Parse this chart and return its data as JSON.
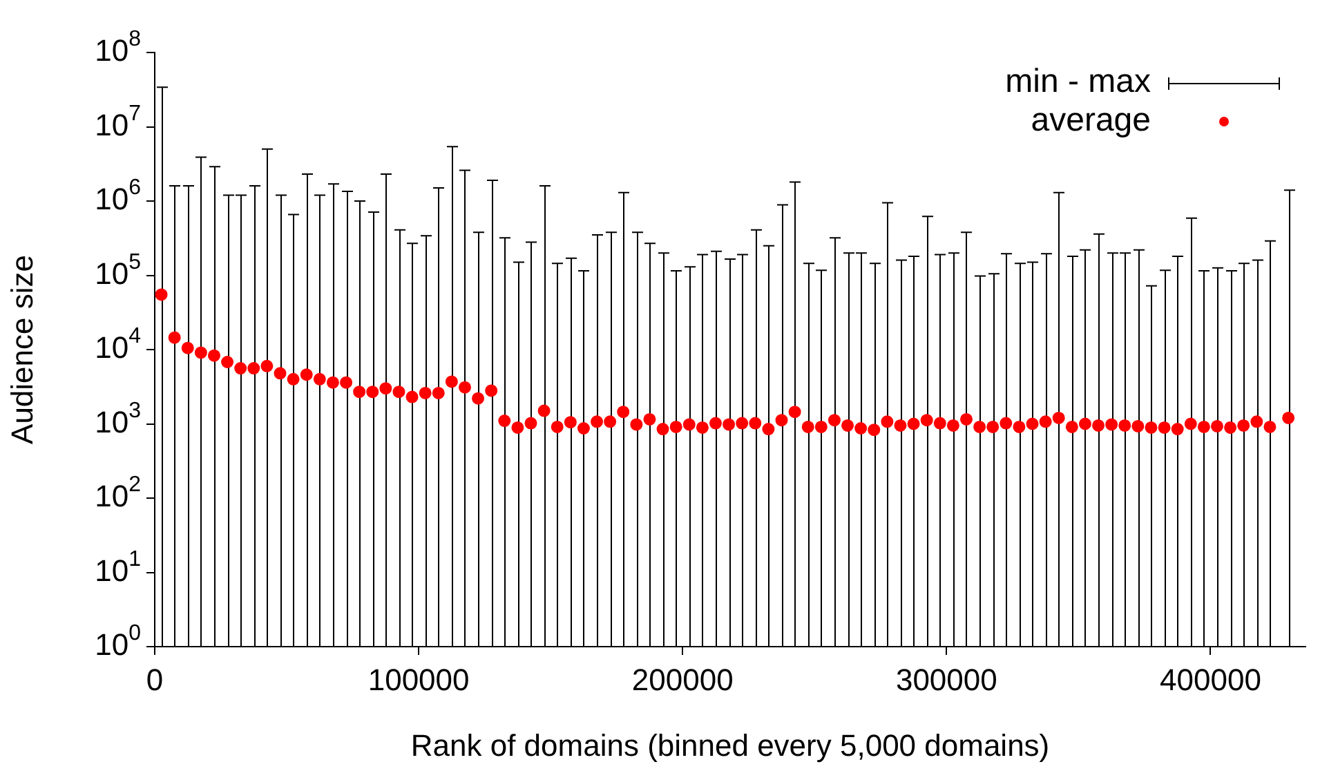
{
  "chart_data": {
    "type": "scatter",
    "xlabel": "Rank of domains (binned every 5,000 domains)",
    "ylabel": "Audience size",
    "log": "y",
    "legend": "top right",
    "marker": "circle",
    "annotations": [
      "min - max"
    ],
    "xlim": [
      0,
      436000
    ],
    "xticks": [
      0,
      100000,
      200000,
      300000,
      400000
    ],
    "ylim": [
      1,
      100000000
    ],
    "yticks": [
      {
        "value": 1,
        "label": "10$^{0}$"
      },
      {
        "value": 10,
        "label": "10$^{1}$"
      },
      {
        "value": 100,
        "label": "10$^{2}$"
      },
      {
        "value": 1000,
        "label": "10$^{3}$"
      },
      {
        "value": 10000,
        "label": "10$^{4}$"
      },
      {
        "value": 100000,
        "label": "10$^{5}$"
      },
      {
        "value": 1000000,
        "label": "10$^{6}$"
      },
      {
        "value": 10000000,
        "label": "10$^{7}$"
      },
      {
        "value": 100000000,
        "label": "10$^{8}$"
      }
    ],
    "x": [
      2500,
      7500,
      12500,
      17500,
      22500,
      27500,
      32500,
      37500,
      42500,
      47500,
      52500,
      57500,
      62500,
      67500,
      72500,
      77500,
      82500,
      87500,
      92500,
      97500,
      102500,
      107500,
      112500,
      117500,
      122500,
      127500,
      132500,
      137500,
      142500,
      147500,
      152500,
      157500,
      162500,
      167500,
      172500,
      177500,
      182500,
      187500,
      192500,
      197500,
      202500,
      207500,
      212500,
      217500,
      222500,
      227500,
      232500,
      237500,
      242500,
      247500,
      252500,
      257500,
      262500,
      267500,
      272500,
      277500,
      282500,
      287500,
      292500,
      297500,
      302500,
      307500,
      312500,
      317500,
      322500,
      327500,
      332500,
      337500,
      342500,
      347500,
      352500,
      357500,
      362500,
      367500,
      372500,
      377500,
      382500,
      387500,
      392500,
      397500,
      402500,
      407500,
      412500,
      417500,
      422500,
      429500
    ],
    "series": [
      {
        "name": "average",
        "color": "#ff0000",
        "values": [
          55000,
          14500,
          10500,
          9100,
          8300,
          6800,
          5600,
          5600,
          6000,
          4800,
          4000,
          4600,
          4000,
          3600,
          3600,
          2700,
          2700,
          3000,
          2700,
          2300,
          2600,
          2600,
          3700,
          3100,
          2200,
          2800,
          1100,
          890,
          1020,
          1500,
          910,
          1050,
          870,
          1070,
          1070,
          1450,
          980,
          1150,
          850,
          910,
          980,
          890,
          1020,
          980,
          1020,
          1020,
          850,
          1120,
          1450,
          910,
          910,
          1120,
          950,
          870,
          830,
          1070,
          950,
          1000,
          1120,
          1020,
          950,
          1150,
          910,
          910,
          1020,
          910,
          1000,
          1070,
          1200,
          910,
          1000,
          950,
          980,
          950,
          930,
          890,
          890,
          850,
          1000,
          910,
          930,
          890,
          950,
          1070,
          910,
          1200
        ],
        "errors": [
          [
            1,
            34000000
          ],
          [
            1,
            1600000
          ],
          [
            1,
            1600000
          ],
          [
            1,
            3900000
          ],
          [
            1,
            2900000
          ],
          [
            1,
            1200000
          ],
          [
            1,
            1200000
          ],
          [
            1,
            1600000
          ],
          [
            1,
            5000000
          ],
          [
            1,
            1200000
          ],
          [
            1,
            660000
          ],
          [
            1,
            2300000
          ],
          [
            1,
            1200000
          ],
          [
            1,
            1700000
          ],
          [
            1,
            1350000
          ],
          [
            1,
            1000000
          ],
          [
            1,
            710000
          ],
          [
            1,
            2300000
          ],
          [
            1,
            410000
          ],
          [
            1,
            270000
          ],
          [
            1,
            340000
          ],
          [
            1,
            1500000
          ],
          [
            1,
            5400000
          ],
          [
            1,
            2600000
          ],
          [
            1,
            380000
          ],
          [
            1,
            1900000
          ],
          [
            1,
            320000
          ],
          [
            1,
            150000
          ],
          [
            1,
            280000
          ],
          [
            1,
            1600000
          ],
          [
            1,
            145000
          ],
          [
            1,
            170000
          ],
          [
            1,
            115000
          ],
          [
            1,
            350000
          ],
          [
            1,
            380000
          ],
          [
            1,
            1300000
          ],
          [
            1,
            380000
          ],
          [
            1,
            270000
          ],
          [
            1,
            200000
          ],
          [
            1,
            115000
          ],
          [
            1,
            130000
          ],
          [
            1,
            190000
          ],
          [
            1,
            210000
          ],
          [
            1,
            165000
          ],
          [
            1,
            190000
          ],
          [
            1,
            410000
          ],
          [
            1,
            250000
          ],
          [
            1,
            890000
          ],
          [
            1,
            1800000
          ],
          [
            1,
            145000
          ],
          [
            1,
            117000
          ],
          [
            1,
            320000
          ],
          [
            1,
            200000
          ],
          [
            1,
            200000
          ],
          [
            1,
            145000
          ],
          [
            1,
            950000
          ],
          [
            1,
            160000
          ],
          [
            1,
            180000
          ],
          [
            1,
            620000
          ],
          [
            1,
            190000
          ],
          [
            1,
            200000
          ],
          [
            1,
            380000
          ],
          [
            1,
            98000
          ],
          [
            1,
            105000
          ],
          [
            1,
            195000
          ],
          [
            1,
            145000
          ],
          [
            1,
            150000
          ],
          [
            1,
            195000
          ],
          [
            1,
            1300000
          ],
          [
            1,
            180000
          ],
          [
            1,
            220000
          ],
          [
            1,
            360000
          ],
          [
            1,
            200000
          ],
          [
            1,
            200000
          ],
          [
            1,
            220000
          ],
          [
            1,
            72000
          ],
          [
            1,
            117000
          ],
          [
            1,
            180000
          ],
          [
            1,
            590000
          ],
          [
            1,
            115000
          ],
          [
            1,
            126000
          ],
          [
            1,
            115000
          ],
          [
            1,
            145000
          ],
          [
            1,
            160000
          ],
          [
            1,
            290000
          ],
          [
            1,
            1400000
          ]
        ]
      }
    ]
  }
}
